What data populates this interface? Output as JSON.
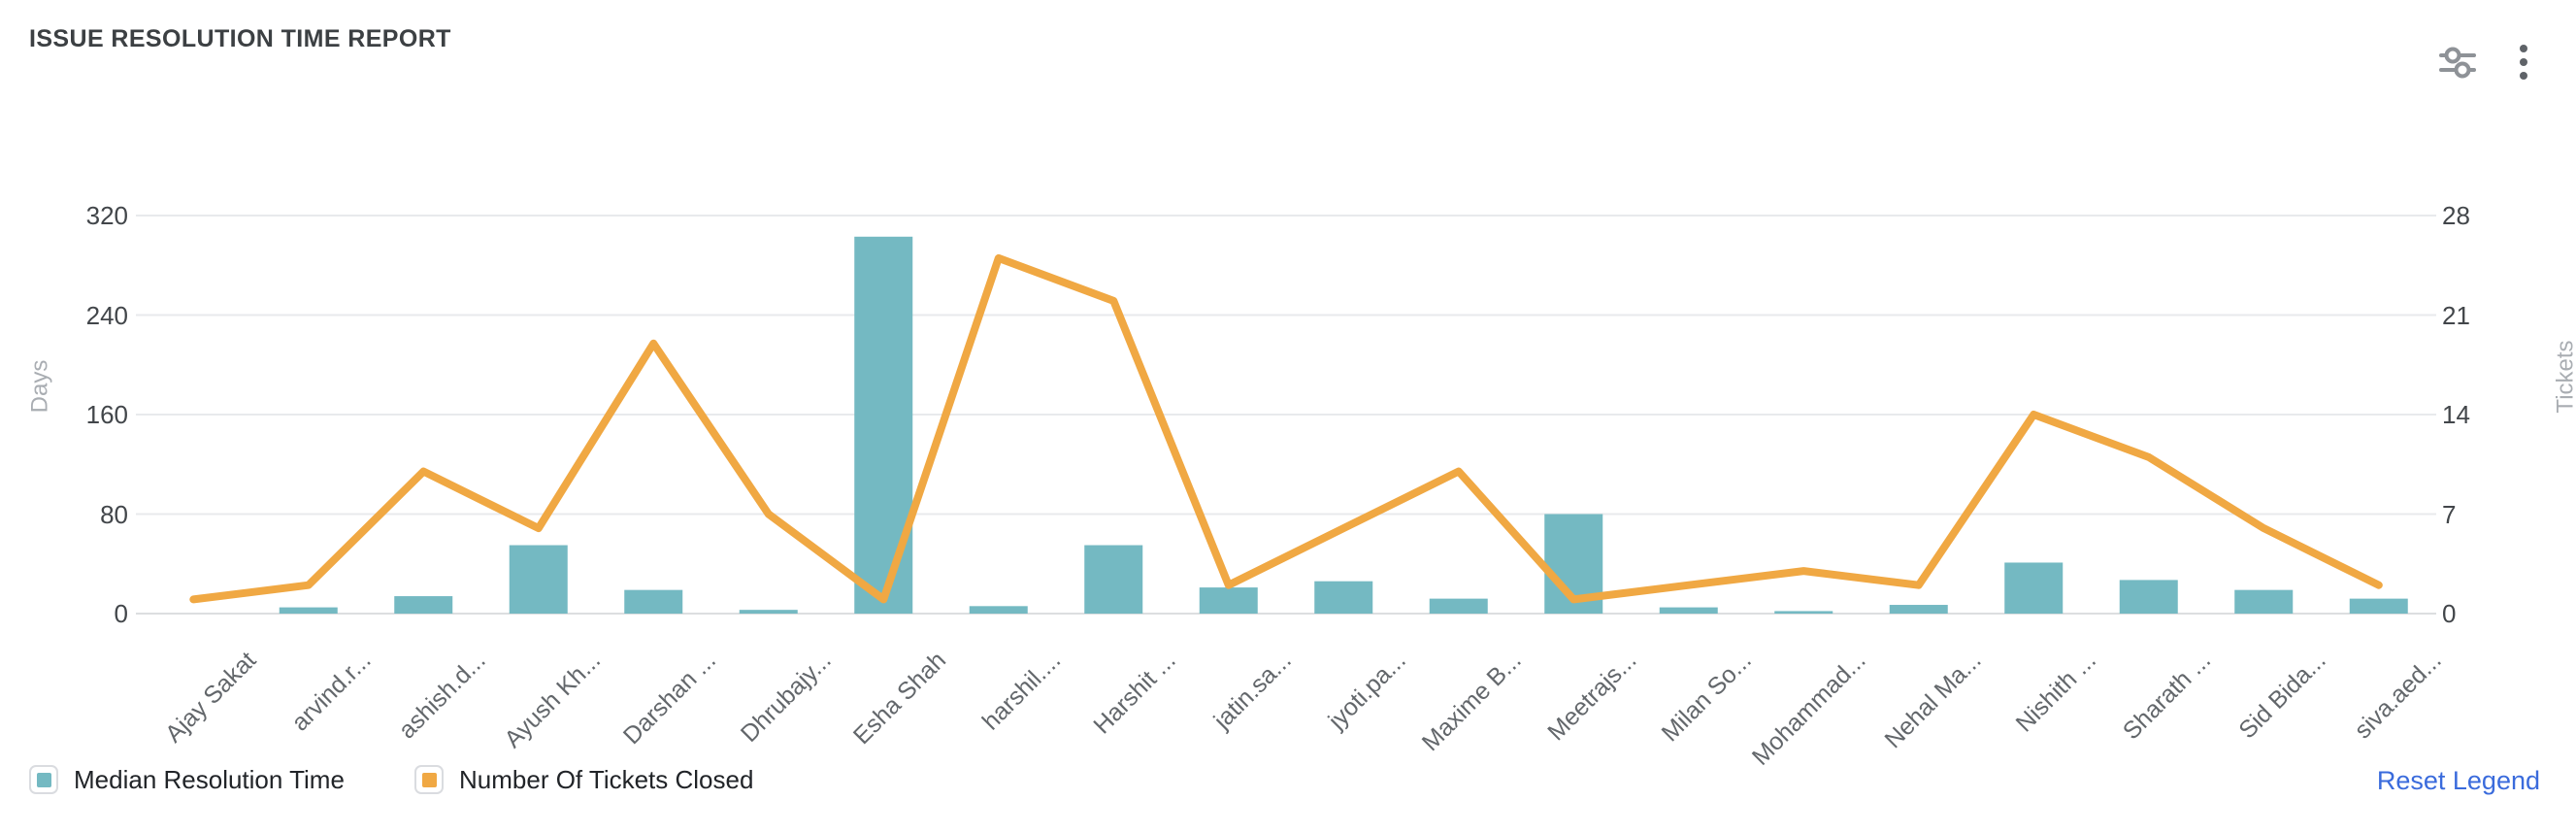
{
  "header": {
    "title": "ISSUE RESOLUTION TIME REPORT",
    "actions": [
      {
        "name": "chart-settings",
        "icon": "sliders-icon"
      },
      {
        "name": "more-options",
        "icon": "kebab-menu-icon"
      }
    ]
  },
  "chart_data": {
    "type": "bar+line",
    "title": "ISSUE RESOLUTION TIME REPORT",
    "categories": [
      "Ajay Sakat",
      "arvind.r...",
      "ashish.d...",
      "Ayush Kh...",
      "Darshan ...",
      "Dhrubajy...",
      "Esha Shah",
      "harshil....",
      "Harshit ...",
      "jatin.sa...",
      "jyoti.pa...",
      "Maxime B...",
      "Meetrajs...",
      "Milan So...",
      "Mohammad...",
      "Nehal Ma...",
      "Nishith ...",
      "Sharath ...",
      "Sid Bida...",
      "siva.aed..."
    ],
    "series": [
      {
        "name": "Median Resolution Time",
        "type": "bar",
        "y_axis": "left",
        "color": "#74b9c2",
        "values": [
          0,
          5,
          14,
          55,
          19,
          3,
          303,
          6,
          55,
          21,
          26,
          12,
          80,
          5,
          2,
          7,
          41,
          27,
          19,
          12
        ]
      },
      {
        "name": "Number Of Tickets Closed",
        "type": "line",
        "y_axis": "right",
        "color": "#f0a843",
        "values": [
          1,
          2,
          10,
          6,
          19,
          7,
          1,
          25,
          22,
          2,
          6,
          10,
          1,
          2,
          3,
          2,
          14,
          11,
          6,
          2
        ]
      }
    ],
    "left_axis": {
      "label": "Days",
      "min": 0,
      "max": 320,
      "ticks": [
        0,
        80,
        160,
        240,
        320
      ]
    },
    "right_axis": {
      "label": "Tickets",
      "min": 0,
      "max": 28,
      "ticks": [
        0,
        7,
        14,
        21,
        28
      ]
    },
    "grid": true,
    "legend_position": "bottom-left"
  },
  "legend": {
    "items": [
      {
        "label": "Median Resolution Time",
        "color": "#74b9c2"
      },
      {
        "label": "Number Of Tickets Closed",
        "color": "#f0a843"
      }
    ],
    "reset_label": "Reset Legend"
  },
  "colors": {
    "bar": "#74b9c2",
    "line": "#f0a843",
    "grid": "#e8eaec",
    "zero_line": "#dcdee0",
    "title": "#3c4043",
    "tick": "#42464a",
    "axis_name": "#a9adb2",
    "x_label": "#63676b",
    "legend_text": "#212428",
    "reset_link": "#3a6bdc",
    "icon_gray": "#8e9297",
    "kebab_gray": "#5f6368"
  }
}
